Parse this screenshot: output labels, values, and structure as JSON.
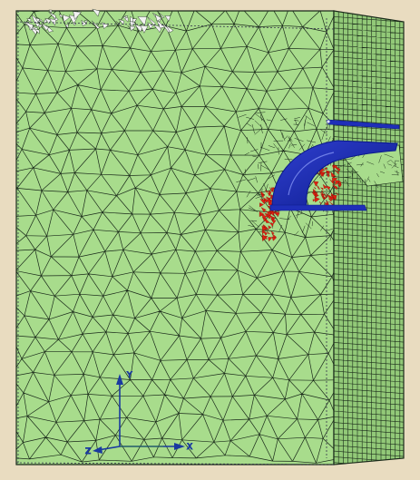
{
  "viewport": {
    "background": "#e9dcc0",
    "colors": {
      "mesh_face_front": "#a8dc8c",
      "mesh_face_side": "#92c978",
      "mesh_line": "#1a2a1a",
      "cutter": "#1f2fb8",
      "cutter_dark": "#0b1a8a",
      "damage": "#e02010",
      "axis": "#1a3aa0",
      "top_void": "#f2f2f2"
    }
  },
  "mesh": {
    "front_face": "tetrahedral-mesh",
    "side_face": "structured-hex-mesh"
  },
  "tool": {
    "icon": "cutting-tool-insert"
  },
  "damage_zone": {
    "icon": "crack-damage-elements"
  },
  "axes": {
    "icon": "coordinate-triad",
    "y_label": "Y",
    "x_label": "X",
    "z_label": "Z"
  }
}
